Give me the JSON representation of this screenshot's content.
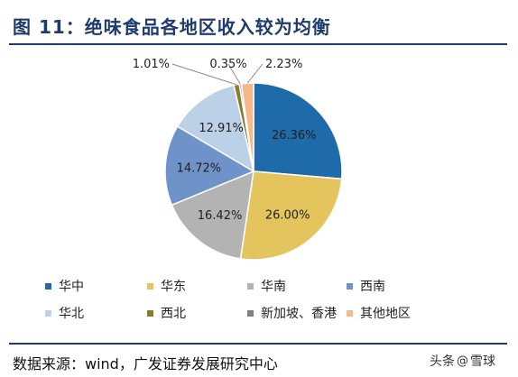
{
  "title": "图 11：绝味食品各地区收入较为均衡",
  "source": "数据来源：wind，广发证券发展研究中心",
  "watermark": {
    "prefix": "头条",
    "at": "@",
    "name": "雪球"
  },
  "chart_data": {
    "type": "pie",
    "title": "",
    "start_angle_deg": 0,
    "direction": "clockwise",
    "slices": [
      {
        "name": "华中",
        "value": 26.36,
        "label": "26.36%",
        "color": "#1f6aa8"
      },
      {
        "name": "华东",
        "value": 26.0,
        "label": "26.00%",
        "color": "#e3c45d"
      },
      {
        "name": "华南",
        "value": 16.42,
        "label": "16.42%",
        "color": "#b3b3b3"
      },
      {
        "name": "西南",
        "value": 14.72,
        "label": "14.72%",
        "color": "#6f93c8"
      },
      {
        "name": "华北",
        "value": 12.91,
        "label": "12.91%",
        "color": "#bcd0e8"
      },
      {
        "name": "西北",
        "value": 1.01,
        "label": "1.01%",
        "color": "#8b7a2a"
      },
      {
        "name": "新加坡、香港",
        "value": 0.35,
        "label": "0.35%",
        "color": "#7f7f7f"
      },
      {
        "name": "其他地区",
        "value": 2.23,
        "label": "2.23%",
        "color": "#f4b98c"
      }
    ],
    "legend_placement": "bottom"
  }
}
